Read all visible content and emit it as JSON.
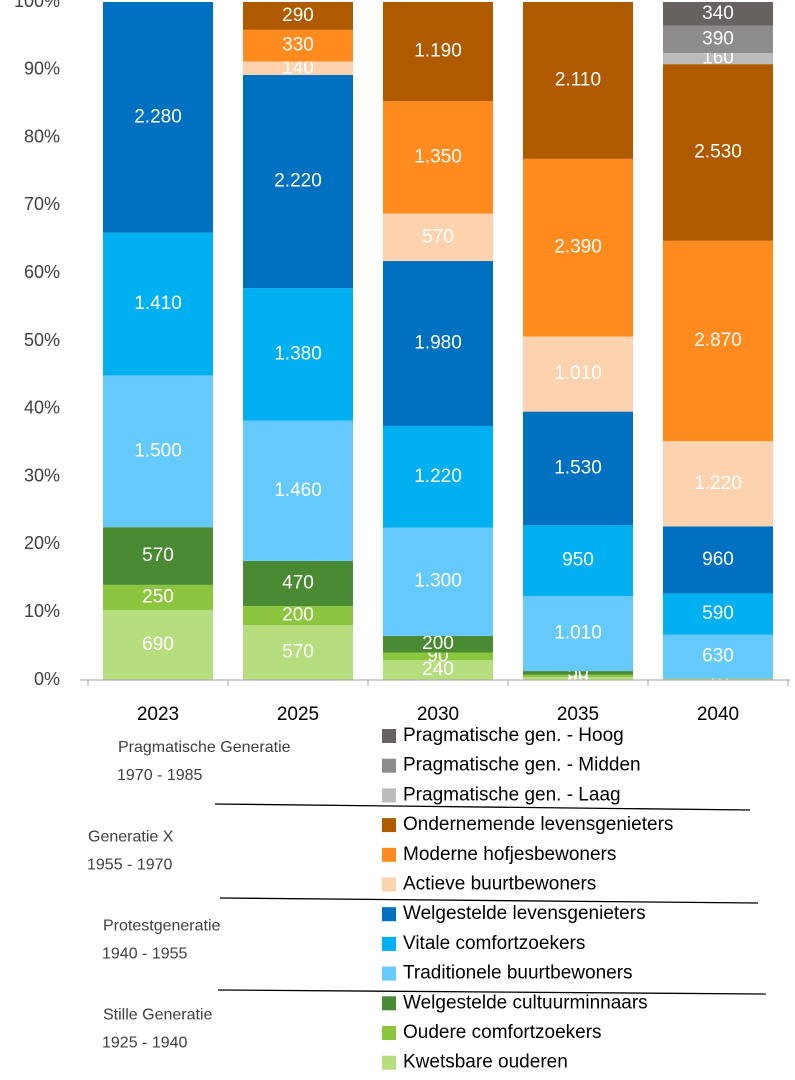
{
  "chart_data": {
    "type": "bar",
    "stacking": "percent",
    "categories": [
      "2023",
      "2025",
      "2030",
      "2035",
      "2040"
    ],
    "ylim": [
      0,
      100
    ],
    "yticks": [
      {
        "value": 0,
        "label": "0%"
      },
      {
        "value": 10,
        "label": "10%"
      },
      {
        "value": 20,
        "label": "20%"
      },
      {
        "value": 30,
        "label": "30%"
      },
      {
        "value": 40,
        "label": "40%"
      },
      {
        "value": 50,
        "label": "50%"
      },
      {
        "value": 60,
        "label": "60%"
      },
      {
        "value": 70,
        "label": "70%"
      },
      {
        "value": 80,
        "label": "80%"
      },
      {
        "value": 90,
        "label": "90%"
      },
      {
        "value": 100,
        "label": "100%"
      }
    ],
    "series": [
      {
        "name": "Kwetsbare ouderen",
        "color": "#b6de7e",
        "values": [
          690,
          570,
          240,
          40,
          10
        ],
        "value_labels": [
          "690",
          "570",
          "240",
          "40",
          "10"
        ]
      },
      {
        "name": "Oudere comfortzoekers",
        "color": "#8cc63e",
        "values": [
          250,
          200,
          90,
          30,
          10
        ],
        "value_labels": [
          "250",
          "200",
          "90",
          "30",
          "10"
        ]
      },
      {
        "name": "Welgestelde cultuurminnaars",
        "color": "#4a8a32",
        "values": [
          570,
          470,
          200,
          50,
          null
        ],
        "value_labels": [
          "570",
          "470",
          "200",
          "50",
          null
        ]
      },
      {
        "name": "Traditionele buurtbewoners",
        "color": "#66c9fb",
        "values": [
          1500,
          1460,
          1300,
          1010,
          630
        ],
        "value_labels": [
          "1.500",
          "1.460",
          "1.300",
          "1.010",
          "630"
        ]
      },
      {
        "name": "Vitale comfortzoekers",
        "color": "#00b0f0",
        "values": [
          1410,
          1380,
          1220,
          950,
          590
        ],
        "value_labels": [
          "1.410",
          "1.380",
          "1.220",
          "950",
          "590"
        ]
      },
      {
        "name": "Welgestelde levensgenieters",
        "color": "#0070c0",
        "values": [
          2280,
          2220,
          1980,
          1530,
          960
        ],
        "value_labels": [
          "2.280",
          "2.220",
          "1.980",
          "1.530",
          "960"
        ]
      },
      {
        "name": "Actieve buurtbewoners",
        "color": "#fcd3ae",
        "values": [
          null,
          140,
          570,
          1010,
          1220
        ],
        "value_labels": [
          null,
          "140",
          "570",
          "1.010",
          "1.220"
        ]
      },
      {
        "name": "Moderne hofjesbewoners",
        "color": "#ff8b1e",
        "values": [
          null,
          330,
          1350,
          2390,
          2870
        ],
        "value_labels": [
          null,
          "330",
          "1.350",
          "2.390",
          "2.870"
        ]
      },
      {
        "name": "Ondernemende levensgenieters",
        "color": "#b05a00",
        "values": [
          null,
          290,
          1190,
          2110,
          2530
        ],
        "value_labels": [
          null,
          "290",
          "1.190",
          "2.110",
          "2.530"
        ]
      },
      {
        "name": "Pragmatische gen. - Laag",
        "color": "#bdbcbc",
        "values": [
          null,
          null,
          null,
          null,
          160
        ],
        "value_labels": [
          null,
          null,
          null,
          null,
          "160"
        ]
      },
      {
        "name": "Pragmatische gen. - Midden",
        "color": "#8e8b8b",
        "values": [
          null,
          null,
          null,
          null,
          390
        ],
        "value_labels": [
          null,
          null,
          null,
          null,
          "390"
        ]
      },
      {
        "name": "Pragmatische gen. - Hoog",
        "color": "#67625f",
        "values": [
          null,
          null,
          null,
          null,
          340
        ],
        "value_labels": [
          null,
          null,
          null,
          null,
          "340"
        ]
      }
    ],
    "groups": [
      {
        "name": "Pragmatische Generatie",
        "years": "1970 - 1985"
      },
      {
        "name": "Generatie X",
        "years": "1955 - 1970"
      },
      {
        "name": "Protestgeneratie",
        "years": "1940 - 1955"
      },
      {
        "name": "Stille Generatie",
        "years": "1925 - 1940"
      }
    ]
  }
}
